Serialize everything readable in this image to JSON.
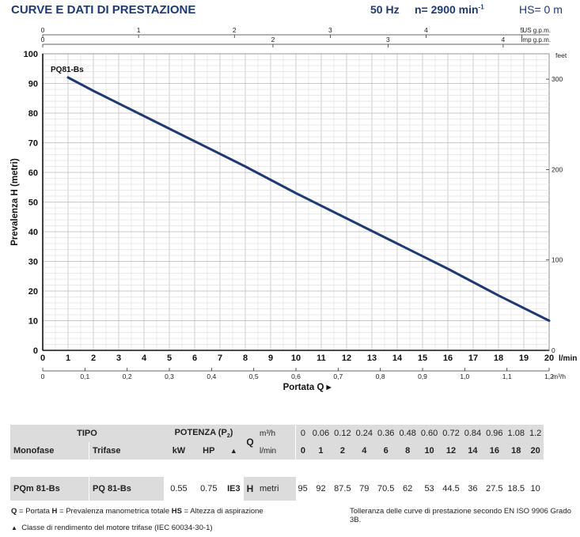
{
  "header": {
    "title": "CURVE E DATI DI PRESTAZIONE",
    "freq": "50 Hz",
    "speed": "n= 2900 min",
    "speed_sup": "-1",
    "hs": "HS= 0 m"
  },
  "chart_data": {
    "type": "line",
    "xlabel": "Portata Q",
    "ylabel": "Prevalenza H (metri)",
    "x": [
      1,
      2,
      4,
      6,
      8,
      10,
      12,
      14,
      16,
      18,
      20
    ],
    "series": [
      {
        "name": "PQ81-Bs",
        "values": [
          92,
          87.5,
          79,
          70.5,
          62,
          53,
          44.5,
          36,
          27.5,
          18.5,
          10
        ]
      }
    ],
    "xlim": [
      0,
      20
    ],
    "ylim": [
      0,
      100
    ],
    "x_ticks": [
      "0",
      "1",
      "2",
      "3",
      "4",
      "5",
      "6",
      "7",
      "8",
      "9",
      "10",
      "11",
      "12",
      "13",
      "14",
      "15",
      "16",
      "17",
      "18",
      "19",
      "20"
    ],
    "x_unit": "l/min",
    "y_ticks": [
      "0",
      "10",
      "20",
      "30",
      "40",
      "50",
      "60",
      "70",
      "80",
      "90",
      "100"
    ],
    "m3h_ticks": [
      "0",
      "0,1",
      "0,2",
      "0,3",
      "0,4",
      "0,5",
      "0,6",
      "0,7",
      "0,8",
      "0,9",
      "1,0",
      "1,1",
      "1,2"
    ],
    "m3h_unit": "m³/h",
    "us_gpm_ticks": [
      "0",
      "1",
      "2",
      "3",
      "4",
      "5"
    ],
    "us_gpm_unit": "US g.p.m.",
    "imp_gpm_ticks": [
      "0",
      "2",
      "3",
      "4"
    ],
    "imp_gpm_unit": "Imp g.p.m.",
    "feet_ticks": [
      "0",
      "100",
      "200",
      "300"
    ],
    "feet_unit": "feet",
    "grid": true,
    "line_color": "#1f3a72"
  },
  "table": {
    "tipo": "TIPO",
    "potenza": "POTENZA (P",
    "potenza_sub": "2",
    "potenza_end": ")",
    "q_label": "Q",
    "unit_m3h": "m³/h",
    "unit_lmin": "l/min",
    "monofase": "Monofase",
    "trifase": "Trifase",
    "kw": "kW",
    "hp": "HP",
    "ie_symbol": "▲",
    "q_m3h": [
      "0",
      "0.06",
      "0.12",
      "0.24",
      "0.36",
      "0.48",
      "0.60",
      "0.72",
      "0.84",
      "0.96",
      "1.08",
      "1.2"
    ],
    "q_lmin": [
      "0",
      "1",
      "2",
      "4",
      "6",
      "8",
      "10",
      "12",
      "14",
      "16",
      "18",
      "20"
    ],
    "row": {
      "mono": "PQm 81-Bs",
      "tri": "PQ 81-Bs",
      "kw": "0.55",
      "hp": "0.75",
      "ie": "IE3",
      "h": "H",
      "h_unit": "metri",
      "values": [
        "95",
        "92",
        "87.5",
        "79",
        "70.5",
        "62",
        "53",
        "44.5",
        "36",
        "27.5",
        "18.5",
        "10"
      ]
    }
  },
  "footer": {
    "legend_q": "Q",
    "legend_q_text": " = Portata  ",
    "legend_h": "H",
    "legend_h_text": " = Prevalenza manometrica totale  ",
    "legend_hs": "HS",
    "legend_hs_text": " = Altezza di aspirazione",
    "tolerance": "Tolleranza delle curve di prestazione secondo EN ISO 9906 Grado 3B.",
    "ie_note_symbol": "▲",
    "ie_note": "Classe di rendimento del motore trifase (IEC 60034-30-1)"
  }
}
